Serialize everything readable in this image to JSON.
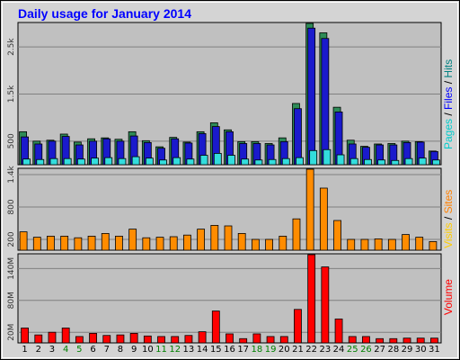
{
  "chart_data": {
    "type": "bar",
    "title": "Daily usage for January 2014",
    "categories": [
      "1",
      "2",
      "3",
      "4",
      "5",
      "6",
      "7",
      "8",
      "9",
      "10",
      "11",
      "12",
      "13",
      "14",
      "15",
      "16",
      "17",
      "18",
      "19",
      "20",
      "21",
      "22",
      "23",
      "24",
      "25",
      "26",
      "27",
      "28",
      "29",
      "30",
      "31"
    ],
    "weekend_days": [
      "4",
      "5",
      "11",
      "12",
      "18",
      "19",
      "25",
      "26"
    ],
    "panels": [
      {
        "id": "pages-files-hits",
        "side_label": [
          {
            "text": "Pages",
            "color": "#00cccc"
          },
          {
            "text": " / ",
            "color": "#000000"
          },
          {
            "text": "Files",
            "color": "#0000ff"
          },
          {
            "text": " / ",
            "color": "#000000"
          },
          {
            "text": "Hits",
            "color": "#008080"
          }
        ],
        "ticks": [
          {
            "value": 500,
            "label": "500"
          },
          {
            "value": 1500,
            "label": "1.5k"
          },
          {
            "value": 2500,
            "label": "2.5k"
          }
        ],
        "ylim": [
          0,
          3000
        ],
        "series": [
          {
            "name": "Hits",
            "color": "#2e8b57",
            "values": [
              700,
              500,
              520,
              650,
              480,
              550,
              570,
              540,
              700,
              510,
              380,
              580,
              480,
              700,
              890,
              740,
              490,
              490,
              450,
              570,
              1300,
              3000,
              2800,
              1220,
              520,
              390,
              440,
              450,
              500,
              490,
              290
            ]
          },
          {
            "name": "Files",
            "color": "#1a1acc",
            "values": [
              590,
              440,
              500,
              600,
              420,
              500,
              550,
              500,
              610,
              470,
              350,
              550,
              460,
              660,
              810,
              700,
              450,
              450,
              420,
              490,
              1190,
              2900,
              2680,
              1120,
              440,
              370,
              420,
              420,
              470,
              480,
              280
            ]
          },
          {
            "name": "Pages",
            "color": "#33dddd",
            "values": [
              120,
              110,
              130,
              130,
              120,
              140,
              150,
              130,
              170,
              140,
              100,
              150,
              120,
              200,
              240,
              200,
              120,
              100,
              110,
              130,
              150,
              300,
              320,
              210,
              130,
              110,
              100,
              90,
              130,
              140,
              100
            ]
          }
        ]
      },
      {
        "id": "visits-sites",
        "side_label": [
          {
            "text": "Visits",
            "color": "#ffcc00"
          },
          {
            "text": " / ",
            "color": "#000000"
          },
          {
            "text": "Sites",
            "color": "#ff8000"
          }
        ],
        "ticks": [
          {
            "value": 200,
            "label": "200"
          },
          {
            "value": 800,
            "label": "800"
          },
          {
            "value": 1400,
            "label": "1.4k"
          }
        ],
        "ylim": [
          0,
          1500
        ],
        "series": [
          {
            "name": "Sites",
            "color": "#ff8c00",
            "values": [
              340,
              240,
              260,
              260,
              230,
              260,
              310,
              260,
              390,
              230,
              240,
              250,
              280,
              390,
              460,
              450,
              310,
              200,
              200,
              260,
              580,
              1500,
              1150,
              550,
              200,
              200,
              210,
              200,
              290,
              240,
              160
            ]
          },
          {
            "name": "Visits",
            "color": "#ffcc00",
            "values": [
              0,
              0,
              0,
              0,
              0,
              0,
              0,
              0,
              0,
              0,
              0,
              0,
              0,
              0,
              0,
              0,
              0,
              0,
              0,
              0,
              0,
              0,
              0,
              0,
              0,
              0,
              0,
              0,
              0,
              0,
              0
            ]
          }
        ]
      },
      {
        "id": "volume",
        "side_label": [
          {
            "text": "Volume",
            "color": "#ff0000"
          }
        ],
        "ticks": [
          {
            "value": 20,
            "label": "20M"
          },
          {
            "value": 80,
            "label": "80M"
          },
          {
            "value": 140,
            "label": "140M"
          }
        ],
        "ylim": [
          0,
          166
        ],
        "series": [
          {
            "name": "Volume",
            "color": "#ff0000",
            "values": [
              28,
              15,
              20,
              28,
              12,
              18,
              14,
              15,
              18,
              13,
              12,
              12,
              14,
              21,
              60,
              17,
              8,
              17,
              12,
              12,
              63,
              166,
              143,
              45,
              12,
              12,
              8,
              8,
              9,
              9,
              9
            ]
          }
        ]
      }
    ]
  }
}
